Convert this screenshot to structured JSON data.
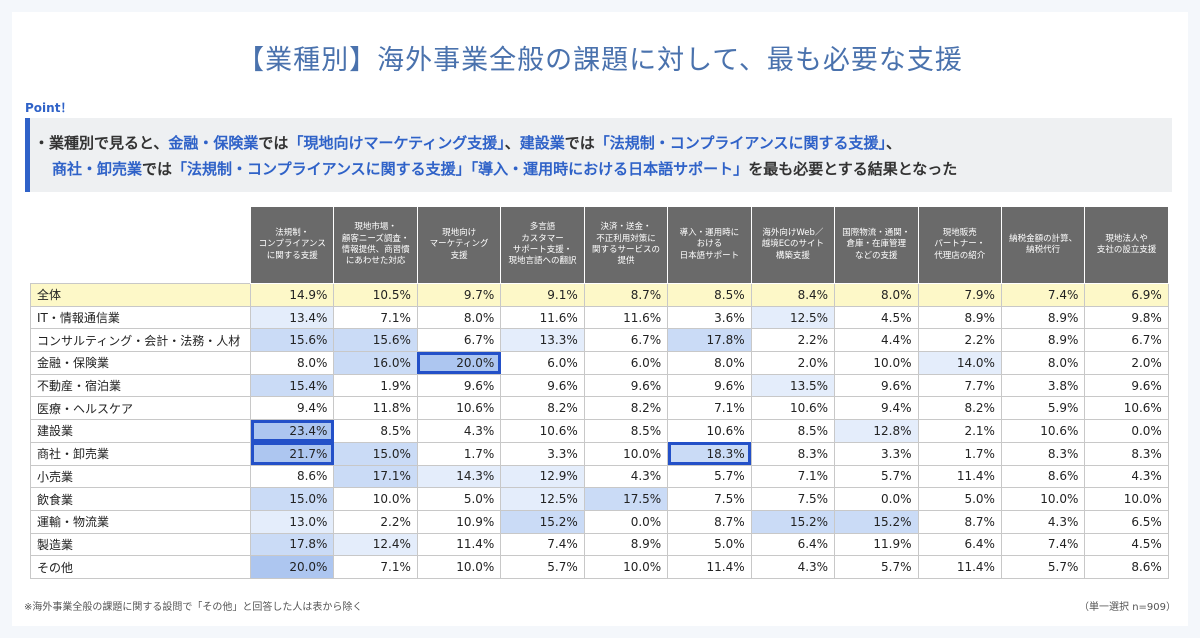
{
  "title": "【業種別】海外事業全般の課題に対して、最も必要な支援",
  "point": {
    "label": "Point！",
    "lines": [
      [
        "・業種別で見ると、",
        "金融・保険業",
        "では",
        "「現地向けマーケティング支援」",
        "、",
        "建設業",
        "では",
        "「法規制・コンプライアンスに関する支援」",
        "、"
      ],
      [
        "商社・卸売業",
        "では",
        "「法規制・コンプライアンスに関する支援」「導入・運用時における日本語サポート」",
        "を最も必要とする結果となった"
      ]
    ]
  },
  "table": {
    "columns": [
      "法規制・\nコンプライアンス\nに関する支援",
      "現地市場・\n顧客ニーズ調査・\n情報提供、商習慣\nにあわせた対応",
      "現地向け\nマーケティング\n支援",
      "多言語\nカスタマー\nサポート支援・\n現地言語への翻訳",
      "決済・送金・\n不正利用対策に\n関するサービスの\n提供",
      "導入・運用時に\nおける\n日本語サポート",
      "海外向けWeb／\n越境ECのサイト\n構築支援",
      "国際物流・通関・\n倉庫・在庫管理\nなどの支援",
      "現地販売\nパートナー・\n代理店の紹介",
      "納税金額の計算、\n納税代行",
      "現地法人や\n支社の設立支援"
    ],
    "rows": [
      [
        "全体",
        "14.9%",
        "10.5%",
        "9.7%",
        "9.1%",
        "8.7%",
        "8.5%",
        "8.4%",
        "8.0%",
        "7.9%",
        "7.4%",
        "6.9%"
      ],
      [
        "IT・情報通信業",
        "13.4%",
        "7.1%",
        "8.0%",
        "11.6%",
        "11.6%",
        "3.6%",
        "12.5%",
        "4.5%",
        "8.9%",
        "8.9%",
        "9.8%"
      ],
      [
        "コンサルティング・会計・法務・人材",
        "15.6%",
        "15.6%",
        "6.7%",
        "13.3%",
        "6.7%",
        "17.8%",
        "2.2%",
        "4.4%",
        "2.2%",
        "8.9%",
        "6.7%"
      ],
      [
        "金融・保険業",
        "8.0%",
        "16.0%",
        "20.0%",
        "6.0%",
        "6.0%",
        "8.0%",
        "2.0%",
        "10.0%",
        "14.0%",
        "8.0%",
        "2.0%"
      ],
      [
        "不動産・宿泊業",
        "15.4%",
        "1.9%",
        "9.6%",
        "9.6%",
        "9.6%",
        "9.6%",
        "13.5%",
        "9.6%",
        "7.7%",
        "3.8%",
        "9.6%"
      ],
      [
        "医療・ヘルスケア",
        "9.4%",
        "11.8%",
        "10.6%",
        "8.2%",
        "8.2%",
        "7.1%",
        "10.6%",
        "9.4%",
        "8.2%",
        "5.9%",
        "10.6%"
      ],
      [
        "建設業",
        "23.4%",
        "8.5%",
        "4.3%",
        "10.6%",
        "8.5%",
        "10.6%",
        "8.5%",
        "12.8%",
        "2.1%",
        "10.6%",
        "0.0%"
      ],
      [
        "商社・卸売業",
        "21.7%",
        "15.0%",
        "1.7%",
        "3.3%",
        "10.0%",
        "18.3%",
        "8.3%",
        "3.3%",
        "1.7%",
        "8.3%",
        "8.3%"
      ],
      [
        "小売業",
        "8.6%",
        "17.1%",
        "14.3%",
        "12.9%",
        "4.3%",
        "5.7%",
        "7.1%",
        "5.7%",
        "11.4%",
        "8.6%",
        "4.3%"
      ],
      [
        "飲食業",
        "15.0%",
        "10.0%",
        "5.0%",
        "12.5%",
        "17.5%",
        "7.5%",
        "7.5%",
        "0.0%",
        "5.0%",
        "10.0%",
        "10.0%"
      ],
      [
        "運輸・物流業",
        "13.0%",
        "2.2%",
        "10.9%",
        "15.2%",
        "0.0%",
        "8.7%",
        "15.2%",
        "15.2%",
        "8.7%",
        "4.3%",
        "6.5%"
      ],
      [
        "製造業",
        "17.8%",
        "12.4%",
        "11.4%",
        "7.4%",
        "8.9%",
        "5.0%",
        "6.4%",
        "11.9%",
        "6.4%",
        "7.4%",
        "4.5%"
      ],
      [
        "その他",
        "20.0%",
        "7.1%",
        "10.0%",
        "5.7%",
        "10.0%",
        "11.4%",
        "4.3%",
        "5.7%",
        "11.4%",
        "5.7%",
        "8.6%"
      ]
    ]
  },
  "footnote": "※海外事業全般の課題に関する設問で「その他」と回答した人は表から除く",
  "sample_note": "（単一選択 n=909）"
}
